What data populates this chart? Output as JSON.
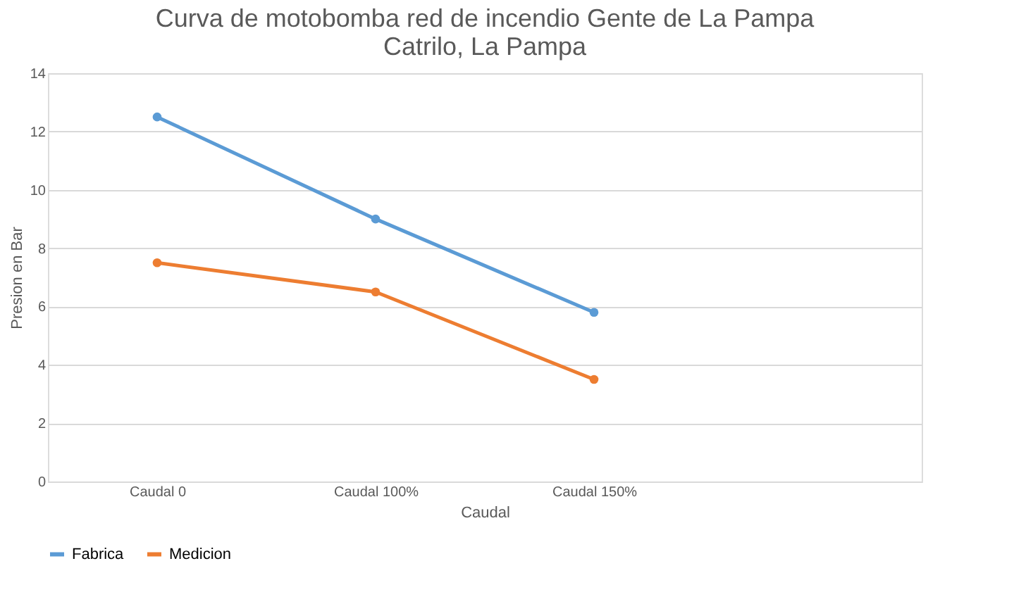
{
  "chart_data": {
    "type": "line",
    "title": [
      "Curva de motobomba red de incendio Gente de La Pampa",
      "Catrilo, La Pampa"
    ],
    "xlabel": "Caudal",
    "ylabel": "Presion en Bar",
    "categories": [
      "Caudal 0",
      "Caudal 100%",
      "Caudal 150%",
      null
    ],
    "series": [
      {
        "name": "Fabrica",
        "color": "#5b9bd5",
        "values": [
          12.5,
          9,
          5.8,
          null
        ]
      },
      {
        "name": "Medicion",
        "color": "#ed7d31",
        "values": [
          7.5,
          6.5,
          3.5,
          null
        ]
      }
    ],
    "ylim": [
      0,
      14
    ],
    "yticks": [
      0,
      2,
      4,
      6,
      8,
      10,
      12,
      14
    ],
    "grid": "y",
    "legend": "bottom",
    "marker": "circle",
    "line_style": "solid"
  }
}
